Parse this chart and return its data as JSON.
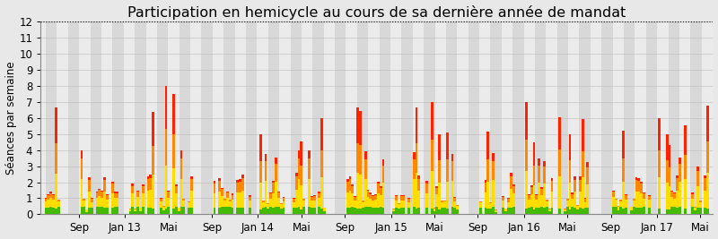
{
  "title": "Participation en hemicycle au cours de sa dernière année de mandat",
  "ylabel": "Séances par semaine",
  "ylim": [
    0,
    12
  ],
  "yticks": [
    0,
    1,
    2,
    3,
    4,
    5,
    6,
    7,
    8,
    9,
    10,
    11,
    12
  ],
  "hline_y": 12,
  "background_color": "#e8e8e8",
  "stripe_colors": [
    "#d8d8d8",
    "#ebebeb"
  ],
  "title_fontsize": 11.5,
  "axis_fontsize": 8.5,
  "tick_fontsize": 8.5,
  "color_green": "#44bb00",
  "color_yellow": "#ffdd00",
  "color_orange": "#ff8800",
  "color_red": "#ff2200",
  "x_tick_labels": [
    "Sep",
    "Jan 13",
    "Mai",
    "Sep",
    "Jan 14",
    "Mai",
    "Sep",
    "Jan 15",
    "Mai",
    "Sep",
    "Jan 16",
    "Mai",
    "Sep",
    "Jan 17",
    "Mai"
  ],
  "n_weeks": 260,
  "weeks_per_month": 4.348
}
